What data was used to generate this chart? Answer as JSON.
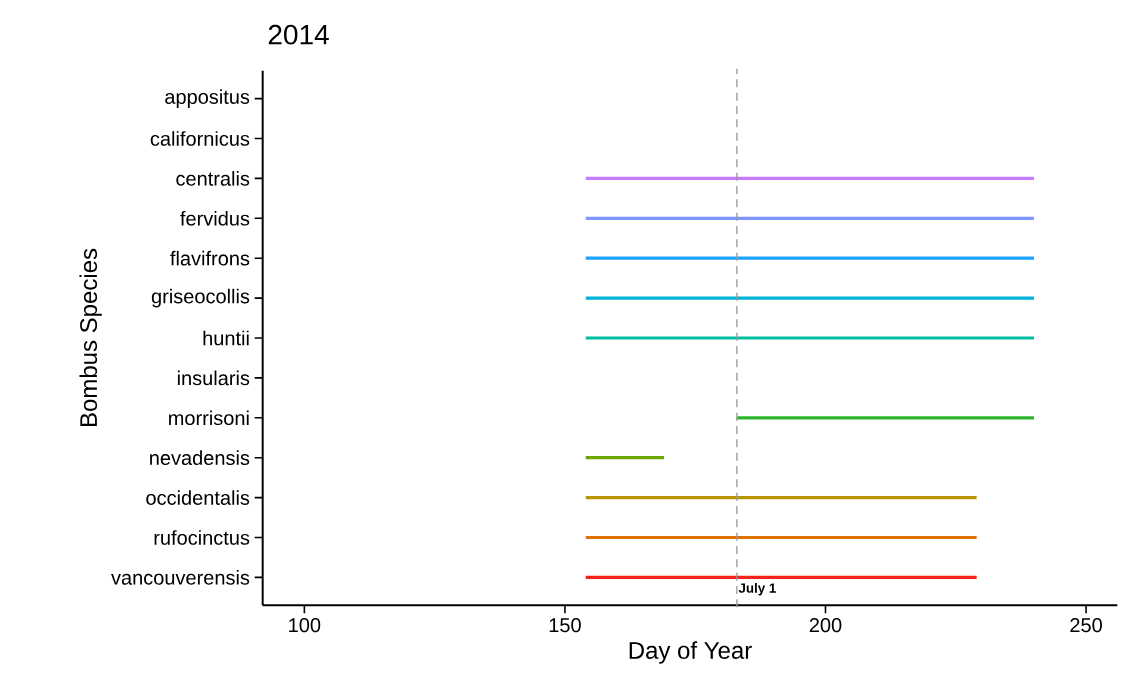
{
  "chart_data": {
    "type": "bar",
    "orientation": "horizontal",
    "title": "2014",
    "xlabel": "Day of Year",
    "ylabel": "Bombus Species",
    "categories": [
      "appositus",
      "californicus",
      "centralis",
      "fervidus",
      "flavifrons",
      "griseocollis",
      "huntii",
      "insularis",
      "morrisoni",
      "nevadensis",
      "occidentalis",
      "rufocinctus",
      "vancouverensis"
    ],
    "base": [
      null,
      null,
      154,
      154,
      154,
      154,
      154,
      null,
      183,
      154,
      154,
      154,
      154
    ],
    "values": [
      null,
      null,
      86,
      86,
      86,
      86,
      86,
      null,
      57,
      15,
      75,
      75,
      75
    ],
    "colors": [
      "#ff61c3",
      "#f564e3",
      "#c77cff",
      "#7f96ff",
      "#1fa1ff",
      "#00b3d6",
      "#00bfa0",
      "#00bd5c",
      "#2cb52c",
      "#6ba800",
      "#b89600",
      "#e07000",
      "#f8211a"
    ],
    "xlim": [
      92,
      256
    ],
    "xticks": [
      100,
      150,
      200,
      250
    ],
    "ref_lines": [
      {
        "axis": "x",
        "value": 183,
        "label": "July 1",
        "color": "#999999",
        "line_style": "dashed"
      }
    ]
  }
}
